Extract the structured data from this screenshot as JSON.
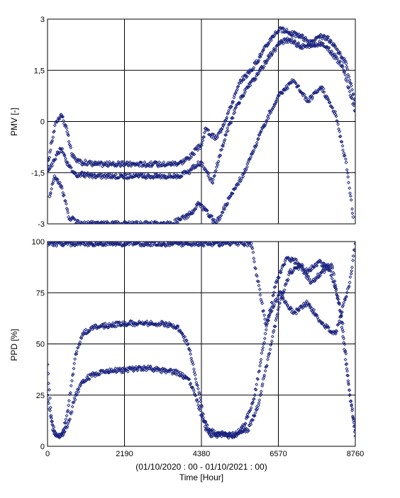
{
  "chart_data": [
    {
      "type": "scatter",
      "title": "",
      "xlabel": "",
      "ylabel": "PMV [-]",
      "xlim": [
        0,
        8760
      ],
      "ylim": [
        -3,
        3
      ],
      "x_ticks": [
        0,
        2190,
        4380,
        6570,
        8760
      ],
      "y_ticks": [
        -3,
        -1.5,
        0,
        1.5,
        3
      ],
      "y_tick_labels": [
        "-3",
        "-1,5",
        "0",
        "1,5",
        "3"
      ],
      "grid": true,
      "marker": "small diamond",
      "color": "#1a237e",
      "series": [
        {
          "x": [
            0,
            120,
            250,
            380,
            420,
            560,
            700,
            900,
            1100,
            1400,
            1800,
            2200,
            2600,
            3000,
            3400,
            3800,
            4100,
            4250,
            4380,
            4500,
            4650,
            4800,
            5000,
            5200,
            5500,
            5800,
            6100,
            6400,
            6600,
            6900,
            7200,
            7500,
            7800,
            8000,
            8300,
            8500,
            8760
          ],
          "y": [
            -1.3,
            -0.6,
            0.0,
            0.2,
            0.15,
            -0.3,
            -1.0,
            -1.2,
            -1.2,
            -1.25,
            -1.25,
            -1.25,
            -1.25,
            -1.25,
            -1.25,
            -1.2,
            -1.0,
            -0.8,
            -0.7,
            -0.2,
            -0.4,
            -0.5,
            -0.1,
            0.4,
            1.2,
            1.5,
            2.0,
            2.5,
            2.7,
            2.6,
            2.5,
            2.3,
            2.5,
            2.4,
            2.0,
            1.7,
            0.5
          ]
        },
        {
          "x": [
            0,
            150,
            300,
            420,
            600,
            800,
            1000,
            1300,
            1700,
            2100,
            2500,
            2900,
            3300,
            3700,
            4000,
            4200,
            4380,
            4550,
            4700,
            4900,
            5100,
            5400,
            5700,
            6000,
            6300,
            6600,
            6900,
            7200,
            7500,
            7800,
            8100,
            8400,
            8760
          ],
          "y": [
            -1.45,
            -1.2,
            -0.9,
            -0.8,
            -1.3,
            -1.55,
            -1.55,
            -1.6,
            -1.6,
            -1.6,
            -1.6,
            -1.6,
            -1.6,
            -1.6,
            -1.5,
            -1.3,
            -1.2,
            -1.5,
            -1.8,
            -1.0,
            -0.3,
            0.5,
            1.0,
            1.4,
            1.9,
            2.3,
            2.4,
            2.2,
            2.2,
            2.3,
            2.0,
            1.6,
            0.3
          ]
        },
        {
          "x": [
            60,
            200,
            400,
            600,
            900,
            1500,
            2500,
            3500,
            4100,
            4300,
            4500,
            4800,
            5200,
            5600,
            6000,
            6300,
            6600,
            7000,
            7400,
            7800,
            8200,
            8500,
            8700
          ],
          "y": [
            -2.2,
            -1.6,
            -1.9,
            -2.8,
            -3.0,
            -3.0,
            -3.0,
            -3.0,
            -2.7,
            -2.4,
            -2.6,
            -3.0,
            -2.2,
            -1.5,
            -0.5,
            0.2,
            0.8,
            1.2,
            0.6,
            1.0,
            0.2,
            -1.2,
            -2.8
          ]
        }
      ]
    },
    {
      "type": "scatter",
      "title": "",
      "xlabel": "(01/10/2020 : 00 - 01/10/2021 : 00)",
      "xlabel2": "Time  [Hour]",
      "ylabel": "PPD [%]",
      "xlim": [
        0,
        8760
      ],
      "ylim": [
        0,
        100
      ],
      "x_ticks": [
        0,
        2190,
        4380,
        6570,
        8760
      ],
      "y_ticks": [
        0,
        25,
        50,
        75,
        100
      ],
      "y_tick_labels": [
        "0",
        "25",
        "50",
        "75",
        "100"
      ],
      "grid": true,
      "marker": "small diamond",
      "color": "#1a237e",
      "series": [
        {
          "x": [
            0,
            100,
            250,
            380,
            450,
            600,
            800,
            1000,
            1300,
            1700,
            2100,
            2500,
            2900,
            3300,
            3700,
            4000,
            4200,
            4380,
            4500,
            4700,
            5000,
            5300,
            5600,
            5900,
            6200,
            6500,
            6800,
            7100,
            7400,
            7700,
            8000,
            8300,
            8500,
            8760
          ],
          "y": [
            40,
            15,
            5,
            5,
            8,
            20,
            45,
            55,
            58,
            59,
            60,
            60,
            60,
            60,
            58,
            50,
            35,
            20,
            8,
            5,
            6,
            5,
            10,
            25,
            55,
            80,
            92,
            90,
            85,
            90,
            88,
            70,
            40,
            5
          ]
        },
        {
          "x": [
            0,
            150,
            300,
            450,
            600,
            800,
            1000,
            1300,
            1700,
            2100,
            2500,
            2900,
            3300,
            3700,
            4000,
            4200,
            4380,
            4600,
            4800,
            5100,
            5400,
            5700,
            6000,
            6300,
            6600,
            6900,
            7200,
            7500,
            7800,
            8100,
            8400,
            8600,
            8760
          ],
          "y": [
            25,
            8,
            5,
            6,
            12,
            25,
            32,
            35,
            37,
            37,
            38,
            38,
            37,
            36,
            33,
            25,
            15,
            8,
            6,
            5,
            6,
            8,
            20,
            45,
            70,
            85,
            88,
            80,
            85,
            88,
            60,
            25,
            8
          ]
        },
        {
          "x": [
            0,
            200,
            400,
            700,
            1000,
            1500,
            2000,
            2500,
            3000,
            3500,
            4000,
            4380,
            4700,
            5000,
            5400,
            5800,
            6200,
            6600,
            7000,
            7400,
            7800,
            8200,
            8600,
            8760
          ],
          "y": [
            99,
            99,
            99,
            99,
            99,
            99,
            99,
            99,
            99,
            99,
            99,
            99,
            99,
            99,
            99,
            99,
            60,
            75,
            65,
            70,
            60,
            55,
            80,
            99
          ]
        }
      ]
    }
  ]
}
